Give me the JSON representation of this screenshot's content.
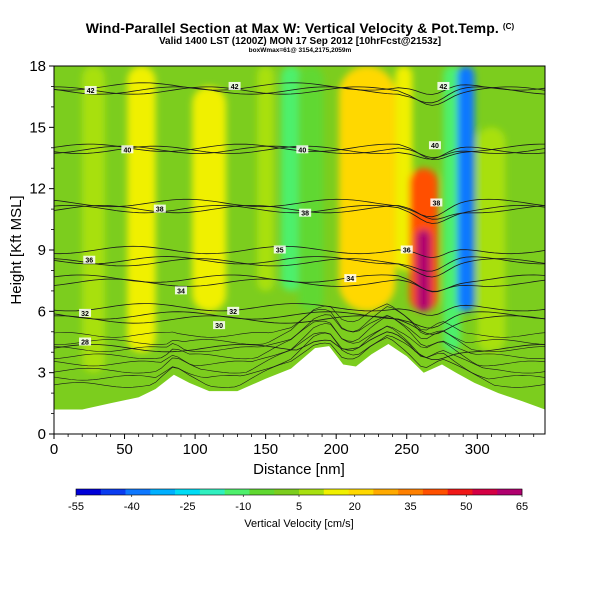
{
  "chart_data": {
    "type": "heatmap",
    "title": "Wind-Parallel Section at Max W: Vertical Velocity & Pot.Temp.",
    "copyright_mark": "(C)",
    "subtitle": "Valid 1400 LST (1200Z) MON 17 Sep 2012 [10hrFcst@2153z]",
    "info_line": "boxWmax=61@ 3154,2175,2059m",
    "xlabel": "Distance [nm]",
    "ylabel": "Height [Kft MSL]",
    "xlim": [
      0,
      348
    ],
    "ylim": [
      0,
      18
    ],
    "x_ticks": [
      0,
      50,
      100,
      150,
      200,
      250,
      300
    ],
    "y_ticks": [
      0,
      3,
      6,
      9,
      12,
      15,
      18
    ],
    "colorbar": {
      "title": "Vertical Velocity [cm/s]",
      "labels": [
        "-55",
        "-40",
        "-25",
        "-10",
        "5",
        "20",
        "35",
        "50",
        "65"
      ],
      "colors": [
        "#0000d8",
        "#0a3cf0",
        "#0e78ff",
        "#00b0ff",
        "#00dcf5",
        "#30f0c0",
        "#4ef06c",
        "#60d830",
        "#7ccd1e",
        "#a8e010",
        "#f0f000",
        "#ffd800",
        "#ffaa00",
        "#ff8000",
        "#ff5000",
        "#f01818",
        "#d40044",
        "#b0006e"
      ]
    },
    "terrain": [
      {
        "x": 0,
        "z": 1.2
      },
      {
        "x": 20,
        "z": 1.2
      },
      {
        "x": 40,
        "z": 1.5
      },
      {
        "x": 60,
        "z": 1.8
      },
      {
        "x": 72,
        "z": 2.2
      },
      {
        "x": 85,
        "z": 2.9
      },
      {
        "x": 96,
        "z": 2.5
      },
      {
        "x": 110,
        "z": 2.1
      },
      {
        "x": 130,
        "z": 2.1
      },
      {
        "x": 150,
        "z": 2.7
      },
      {
        "x": 168,
        "z": 3.2
      },
      {
        "x": 185,
        "z": 4.2
      },
      {
        "x": 195,
        "z": 4.3
      },
      {
        "x": 205,
        "z": 3.4
      },
      {
        "x": 214,
        "z": 3.3
      },
      {
        "x": 225,
        "z": 3.9
      },
      {
        "x": 237,
        "z": 4.4
      },
      {
        "x": 250,
        "z": 3.8
      },
      {
        "x": 262,
        "z": 3.0
      },
      {
        "x": 275,
        "z": 3.4
      },
      {
        "x": 285,
        "z": 3.0
      },
      {
        "x": 298,
        "z": 2.5
      },
      {
        "x": 315,
        "z": 2.0
      },
      {
        "x": 332,
        "z": 1.6
      },
      {
        "x": 348,
        "z": 1.2
      }
    ],
    "velocity_bands": [
      {
        "x": 28,
        "half_width": 8,
        "value": 8,
        "z_from": 3,
        "z_to": 18
      },
      {
        "x": 62,
        "half_width": 10,
        "value": 18,
        "z_from": 4,
        "z_to": 18
      },
      {
        "x": 110,
        "half_width": 12,
        "value": 14,
        "z_from": 6,
        "z_to": 17
      },
      {
        "x": 150,
        "half_width": 6,
        "value": 10,
        "z_from": 7,
        "z_to": 18
      },
      {
        "x": 168,
        "half_width": 7,
        "value": -12,
        "z_from": 7,
        "z_to": 18
      },
      {
        "x": 182,
        "half_width": 9,
        "value": -5,
        "z_from": 6,
        "z_to": 18
      },
      {
        "x": 222,
        "half_width": 20,
        "value": 24,
        "z_from": 6,
        "z_to": 18
      },
      {
        "x": 248,
        "half_width": 6,
        "value": 18,
        "z_from": 8,
        "z_to": 18
      },
      {
        "x": 262,
        "half_width": 10,
        "value": 40,
        "z_from": 6,
        "z_to": 13
      },
      {
        "x": 262,
        "half_width": 5,
        "value": 60,
        "z_from": 6,
        "z_to": 10
      },
      {
        "x": 282,
        "half_width": 6,
        "value": -12,
        "z_from": 4,
        "z_to": 18
      },
      {
        "x": 292,
        "half_width": 6,
        "value": -40,
        "z_from": 6,
        "z_to": 18
      },
      {
        "x": 310,
        "half_width": 10,
        "value": 10,
        "z_from": 4,
        "z_to": 15
      }
    ],
    "isentropes": [
      {
        "label": "28",
        "z_left": 4.2,
        "label_x": 22,
        "label_z": 4.5
      },
      {
        "label": "30",
        "z_left": 5.6,
        "label_x": 117,
        "label_z": 5.3
      },
      {
        "label": "32",
        "z_left": 5.8,
        "label_x": 22,
        "label_z": 5.9
      },
      {
        "label": "32",
        "z_left": 6.2,
        "label_x": 127,
        "label_z": 6.0
      },
      {
        "label": "34",
        "z_left": 7.4,
        "label_x": 90,
        "label_z": 7.0
      },
      {
        "label": "34",
        "z_left": 7.6,
        "label_x": 210,
        "label_z": 7.6
      },
      {
        "label": "35",
        "z_left": 8.4,
        "label_x": 160,
        "label_z": 9.0
      },
      {
        "label": "36",
        "z_left": 8.5,
        "label_x": 25,
        "label_z": 8.5
      },
      {
        "label": "36",
        "z_left": 9.0,
        "label_x": 250,
        "label_z": 9.0
      },
      {
        "label": "38",
        "z_left": 11.0,
        "label_x": 75,
        "label_z": 11.0
      },
      {
        "label": "38",
        "z_left": 11.0,
        "label_x": 178,
        "label_z": 10.8
      },
      {
        "label": "38",
        "z_left": 11.3,
        "label_x": 271,
        "label_z": 11.3
      },
      {
        "label": "40",
        "z_left": 13.9,
        "label_x": 52,
        "label_z": 13.9
      },
      {
        "label": "40",
        "z_left": 13.9,
        "label_x": 176,
        "label_z": 13.9
      },
      {
        "label": "40",
        "z_left": 14.0,
        "label_x": 270,
        "label_z": 14.1
      },
      {
        "label": "42",
        "z_left": 16.8,
        "label_x": 26,
        "label_z": 16.8
      },
      {
        "label": "42",
        "z_left": 16.8,
        "label_x": 128,
        "label_z": 17.0
      },
      {
        "label": "42",
        "z_left": 17.0,
        "label_x": 276,
        "label_z": 17.0
      }
    ]
  }
}
